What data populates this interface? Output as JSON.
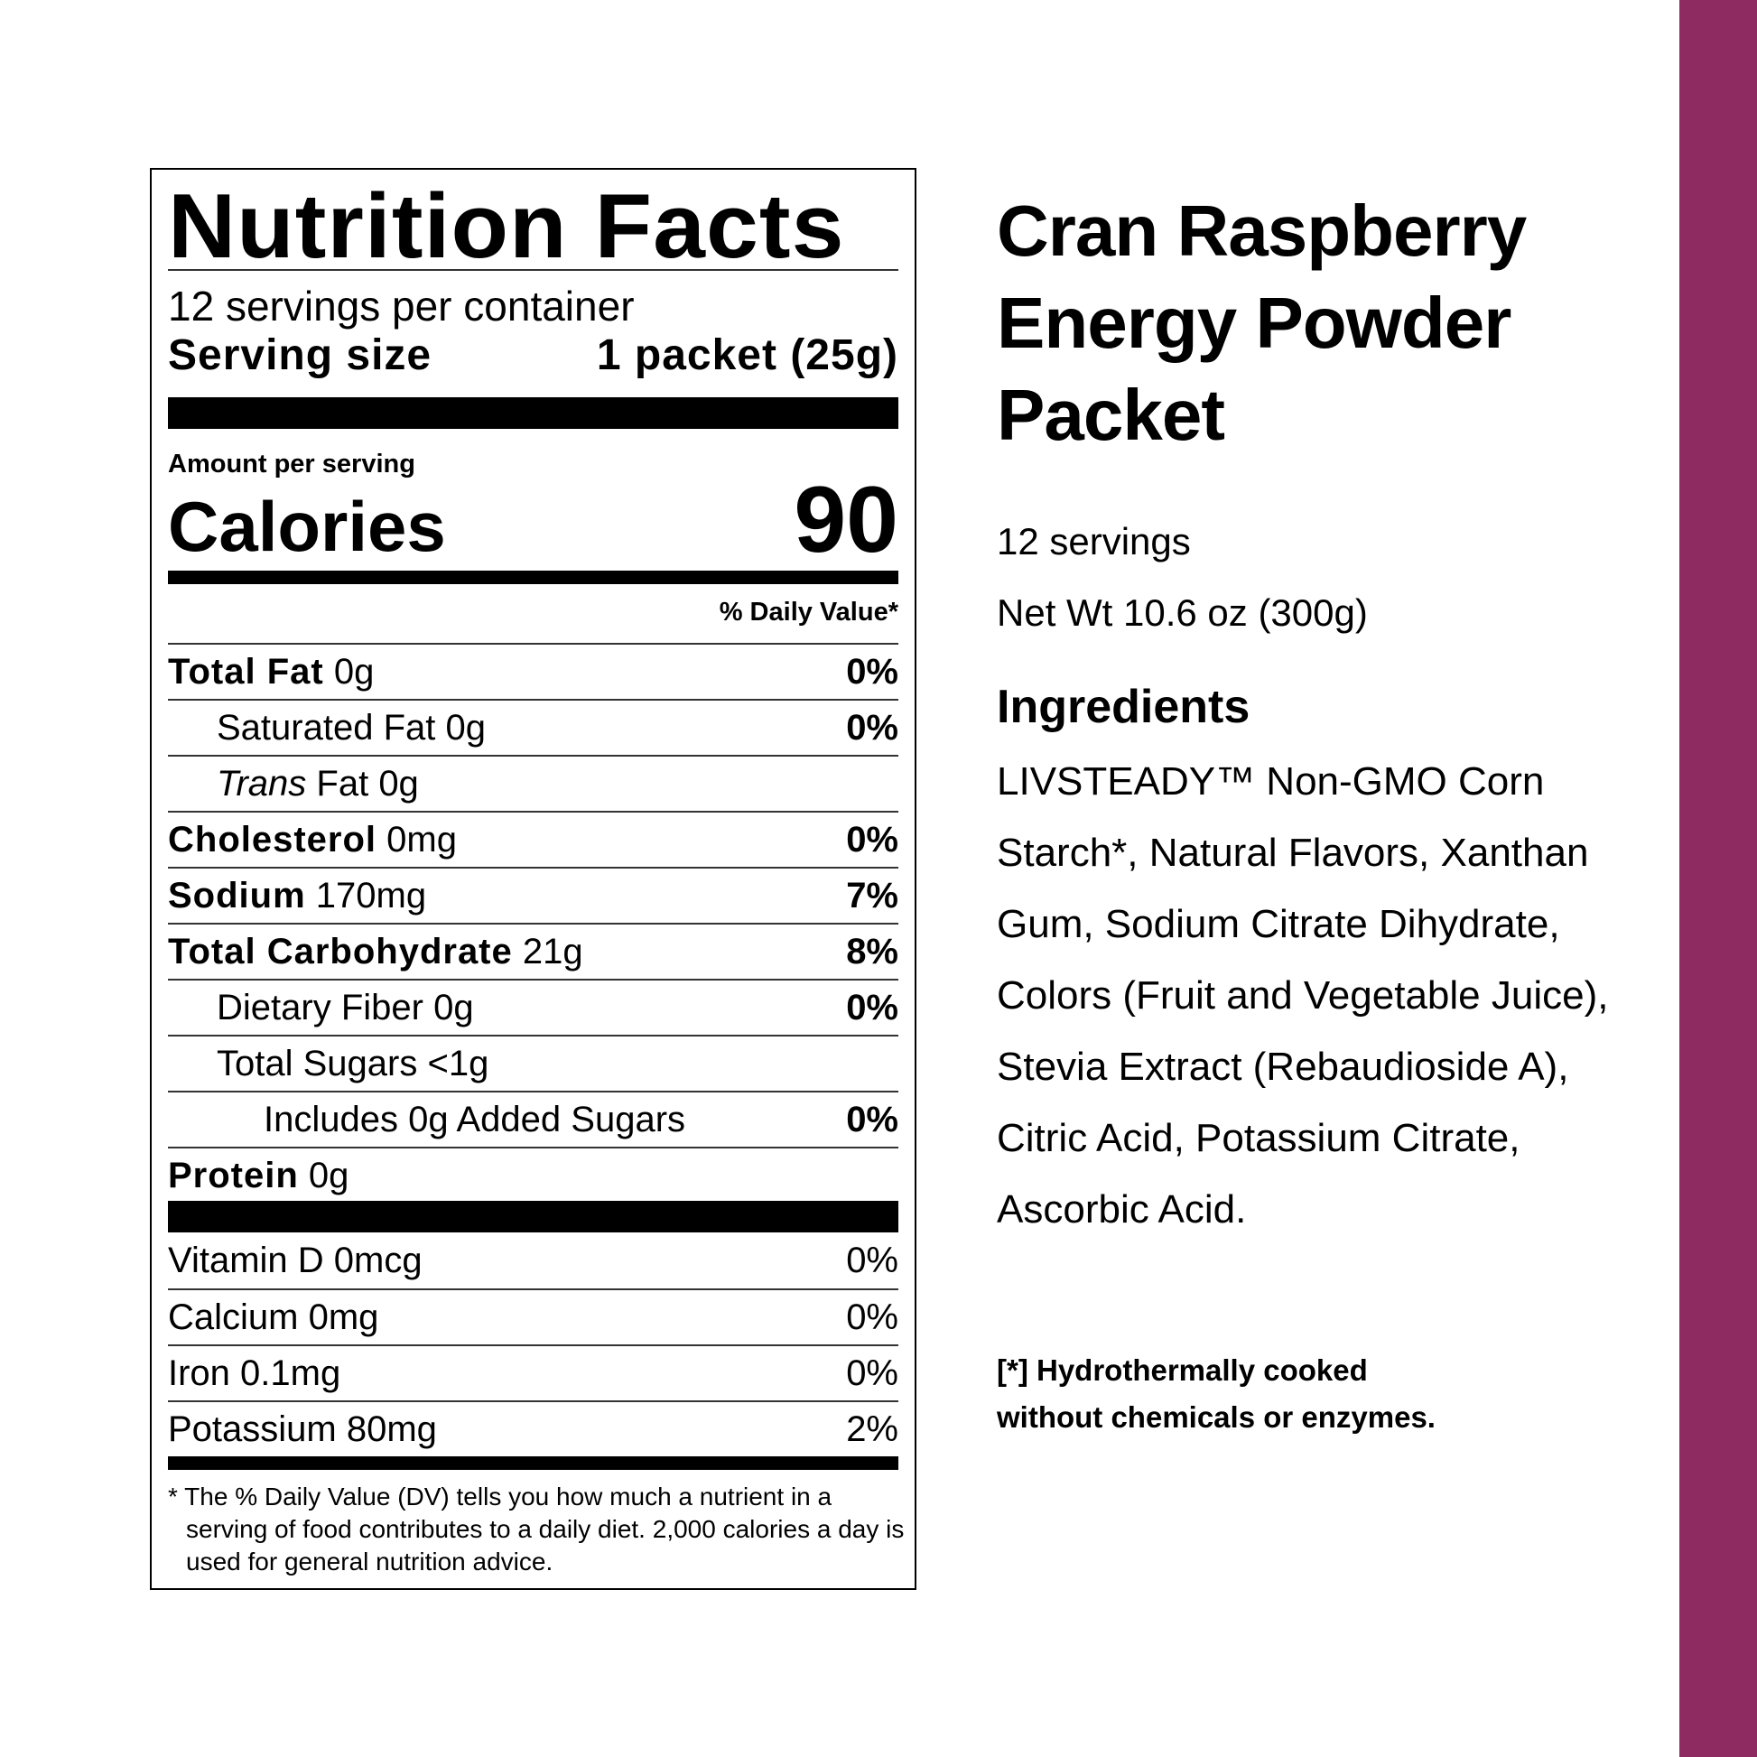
{
  "brand_color": "#8e2c62",
  "label": {
    "title": "Nutrition Facts",
    "servings_per_container": "12 servings per container",
    "serving_size_label": "Serving size",
    "serving_size_value": "1 packet (25g)",
    "amount_per_serving": "Amount per serving",
    "calories_label": "Calories",
    "calories_value": "90",
    "daily_value_header": "% Daily Value*",
    "nutrients": [
      {
        "name": "Total Fat",
        "amount": "0g",
        "dv": "0%"
      },
      {
        "name": "Saturated Fat",
        "amount": "0g",
        "dv": "0%"
      },
      {
        "name": "Trans",
        "amount": "Fat 0g",
        "dv": ""
      },
      {
        "name": "Cholesterol",
        "amount": "0mg",
        "dv": "0%"
      },
      {
        "name": "Sodium",
        "amount": "170mg",
        "dv": "7%"
      },
      {
        "name": "Total Carbohydrate",
        "amount": "21g",
        "dv": "8%"
      },
      {
        "name": "Dietary Fiber",
        "amount": "0g",
        "dv": "0%"
      },
      {
        "name": "Total Sugars",
        "amount": "<1g",
        "dv": ""
      },
      {
        "name": "Includes 0g Added Sugars",
        "amount": "",
        "dv": "0%"
      },
      {
        "name": "Protein",
        "amount": "0g",
        "dv": ""
      }
    ],
    "vitamins": [
      {
        "name": "Vitamin D 0mcg",
        "dv": "0%"
      },
      {
        "name": "Calcium 0mg",
        "dv": "0%"
      },
      {
        "name": "Iron 0.1mg",
        "dv": "0%"
      },
      {
        "name": "Potassium 80mg",
        "dv": "2%"
      }
    ],
    "footnote": "* The % Daily Value (DV) tells you how much a nutrient in a serving of food contributes to a daily diet. 2,000 calories a day is used for general nutrition advice."
  },
  "product": {
    "title_lines": [
      "Cran Raspberry",
      "Energy Powder",
      "Packet"
    ],
    "servings": "12 servings",
    "net_weight": "Net Wt 10.6 oz (300g)",
    "ingredients_heading": "Ingredients",
    "ingredients": "LIVSTEADY™ Non-GMO Corn Starch*, Natural Flavors, Xanthan Gum, Sodium Citrate Dihydrate, Colors (Fruit and Vegetable Juice), Stevia Extract (Rebaudioside A), Citric Acid, Potassium Citrate, Ascorbic Acid.",
    "footnote_lines": [
      "[*] Hydrothermally cooked",
      "without chemicals or enzymes."
    ]
  }
}
